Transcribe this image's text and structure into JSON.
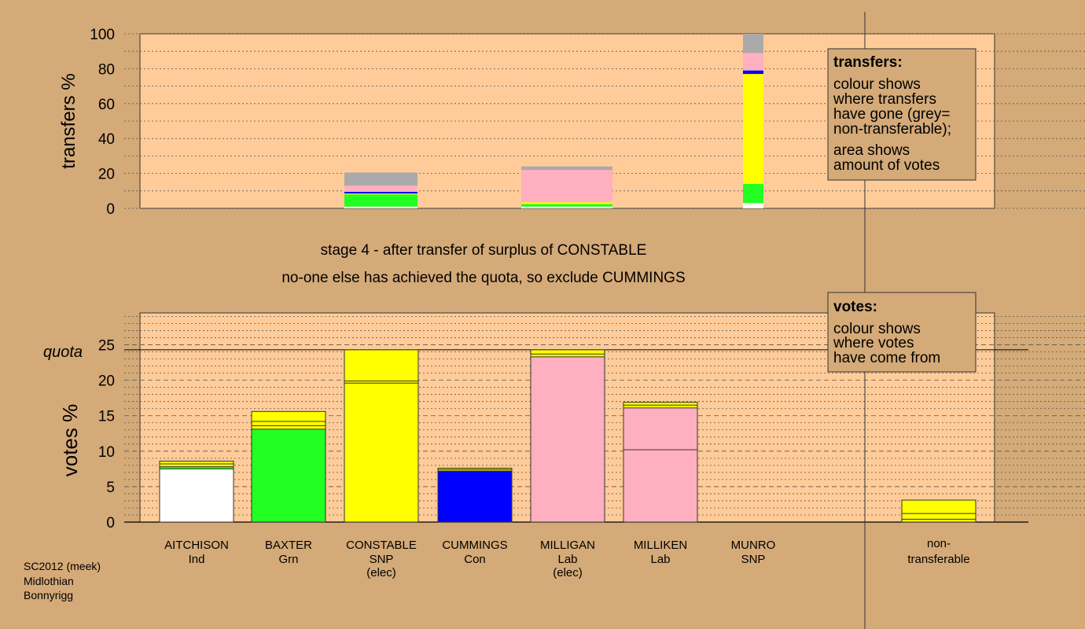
{
  "colors": {
    "page_bg": "#d4aa78",
    "plot_bg": "#ffcc99",
    "Ind": "#ffffff",
    "Grn": "#22ff22",
    "SNP": "#ffff00",
    "Con": "#0000ff",
    "Lab": "#ffb0c0",
    "non_transferable": "#aaaaaa"
  },
  "footer": {
    "line1": "SC2012 (meek)",
    "line2": "Midlothian",
    "line3": "Bonnyrigg"
  },
  "stage_text": {
    "line1": "stage 4 - after transfer of surplus of CONSTABLE",
    "line2": "no-one else has achieved the quota, so exclude CUMMINGS"
  },
  "transfers_box": {
    "title": "transfers:",
    "lines": [
      "colour shows",
      "where transfers",
      "have gone (grey=",
      "non-transferable);"
    ],
    "lines2": [
      "area shows",
      "amount of votes"
    ]
  },
  "votes_box": {
    "title": "votes:",
    "lines": [
      "colour shows",
      "where votes",
      "have come from"
    ]
  },
  "chart_data": [
    {
      "type": "bar",
      "id": "transfers",
      "ylabel": "transfers %",
      "ylim": [
        0,
        100
      ],
      "yticks": [
        0,
        20,
        40,
        60,
        80,
        100
      ],
      "legend": "top-right",
      "grid": "dotted horizontal",
      "columns": [
        {
          "candidate": "CONSTABLE",
          "width_pct_of_total": 20,
          "segments": [
            {
              "to": "Ind",
              "from": 0,
              "to_value": 1
            },
            {
              "to": "Grn",
              "from": 1,
              "to_value": 8
            },
            {
              "to": "SNP",
              "from": 8,
              "to_value": 8.5
            },
            {
              "to": "Con",
              "from": 8.5,
              "to_value": 9.5
            },
            {
              "to": "Lab",
              "from": 9.5,
              "to_value": 13
            },
            {
              "to": "non_transferable",
              "from": 13,
              "to_value": 20.5
            }
          ]
        },
        {
          "candidate": "MILLIGAN",
          "width_pct_of_total": 24,
          "segments": [
            {
              "to": "Ind",
              "from": 0,
              "to_value": 1
            },
            {
              "to": "Grn",
              "from": 1,
              "to_value": 2.5
            },
            {
              "to": "SNP",
              "from": 2.5,
              "to_value": 3.5
            },
            {
              "to": "Lab",
              "from": 3.5,
              "to_value": 22
            },
            {
              "to": "non_transferable",
              "from": 22,
              "to_value": 24
            }
          ]
        },
        {
          "candidate": "CUMMINGS",
          "width_pct_of_total": 100,
          "segments": [
            {
              "to": "Ind",
              "from": 0,
              "to_value": 3
            },
            {
              "to": "Grn",
              "from": 3,
              "to_value": 14
            },
            {
              "to": "SNP",
              "from": 14,
              "to_value": 77
            },
            {
              "to": "Con",
              "from": 77,
              "to_value": 79
            },
            {
              "to": "Lab",
              "from": 79,
              "to_value": 89
            },
            {
              "to": "non_transferable",
              "from": 89,
              "to_value": 100
            }
          ]
        }
      ]
    },
    {
      "type": "bar",
      "id": "votes",
      "ylabel": "votes %",
      "ylim": [
        0,
        29.5
      ],
      "yticks": [
        0,
        5,
        10,
        15,
        20,
        25
      ],
      "quota_label": "quota",
      "quota": 24.3,
      "legend": "top-right",
      "candidates": [
        {
          "name": "AITCHISON",
          "party": "Ind",
          "note": "",
          "color": "Ind",
          "segments": [
            {
              "from": 0,
              "to": 7.5,
              "color": "Ind"
            },
            {
              "from": 7.5,
              "to": 7.8,
              "color": "Grn"
            },
            {
              "from": 7.8,
              "to": 8.6,
              "color": "SNP"
            }
          ],
          "lines": [
            7.5,
            7.8,
            8.2
          ]
        },
        {
          "name": "BAXTER",
          "party": "Grn",
          "note": "",
          "color": "Grn",
          "segments": [
            {
              "from": 0,
              "to": 13.1,
              "color": "Grn"
            },
            {
              "from": 13.1,
              "to": 15.6,
              "color": "SNP"
            }
          ],
          "lines": [
            13.1,
            13.6,
            14.2
          ]
        },
        {
          "name": "CONSTABLE",
          "party": "SNP",
          "note": "(elec)",
          "color": "SNP",
          "segments": [
            {
              "from": 0,
              "to": 24.3,
              "color": "SNP"
            }
          ],
          "lines": [
            19.6,
            19.9
          ]
        },
        {
          "name": "CUMMINGS",
          "party": "Con",
          "note": "",
          "color": "Con",
          "segments": [
            {
              "from": 0,
              "to": 7.2,
              "color": "Con"
            },
            {
              "from": 7.2,
              "to": 7.6,
              "color": "SNP"
            }
          ],
          "lines": [
            7.2,
            7.4
          ]
        },
        {
          "name": "MILLIGAN",
          "party": "Lab",
          "note": "(elec)",
          "color": "Lab",
          "segments": [
            {
              "from": 0,
              "to": 23.3,
              "color": "Lab"
            },
            {
              "from": 23.3,
              "to": 24.3,
              "color": "SNP"
            }
          ],
          "lines": [
            23.3,
            23.7
          ]
        },
        {
          "name": "MILLIKEN",
          "party": "Lab",
          "note": "",
          "color": "Lab",
          "segments": [
            {
              "from": 0,
              "to": 16.1,
              "color": "Lab"
            },
            {
              "from": 16.1,
              "to": 16.9,
              "color": "SNP"
            }
          ],
          "lines": [
            10.2,
            16.1,
            16.5
          ]
        },
        {
          "name": "MUNRO",
          "party": "SNP",
          "note": "",
          "color": "SNP",
          "segments": [],
          "lines": []
        }
      ],
      "non_transferable": {
        "label1": "non-",
        "label2": "transferable",
        "segments": [
          {
            "from": 0,
            "to": 0.4,
            "color": "SNP"
          },
          {
            "from": 0.4,
            "to": 3.1,
            "color": "SNP"
          }
        ],
        "lines": [
          0.4,
          1.2
        ]
      }
    }
  ]
}
